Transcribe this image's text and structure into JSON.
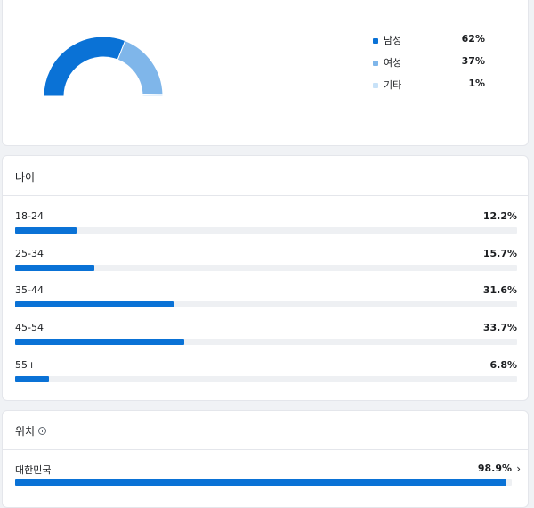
{
  "gender": {
    "colors": {
      "male": "#0a72d6",
      "female": "#7fb6ea",
      "other": "#c8e2f8"
    },
    "items": [
      {
        "label": "남성",
        "value": "62%",
        "fraction": 0.62
      },
      {
        "label": "여성",
        "value": "37%",
        "fraction": 0.37
      },
      {
        "label": "기타",
        "value": "1%",
        "fraction": 0.01
      }
    ]
  },
  "age": {
    "title": "나이",
    "rows": [
      {
        "label": "18-24",
        "value": "12.2%",
        "percent": 12.2
      },
      {
        "label": "25-34",
        "value": "15.7%",
        "percent": 15.7
      },
      {
        "label": "35-44",
        "value": "31.6%",
        "percent": 31.6
      },
      {
        "label": "45-54",
        "value": "33.7%",
        "percent": 33.7
      },
      {
        "label": "55+",
        "value": "6.8%",
        "percent": 6.8
      }
    ]
  },
  "location": {
    "title": "위치",
    "rows": [
      {
        "label": "대한민국",
        "value": "98.9%",
        "percent": 98.9
      }
    ]
  },
  "icons": {
    "info": "info-icon",
    "chevron": "chevron-right-icon"
  }
}
